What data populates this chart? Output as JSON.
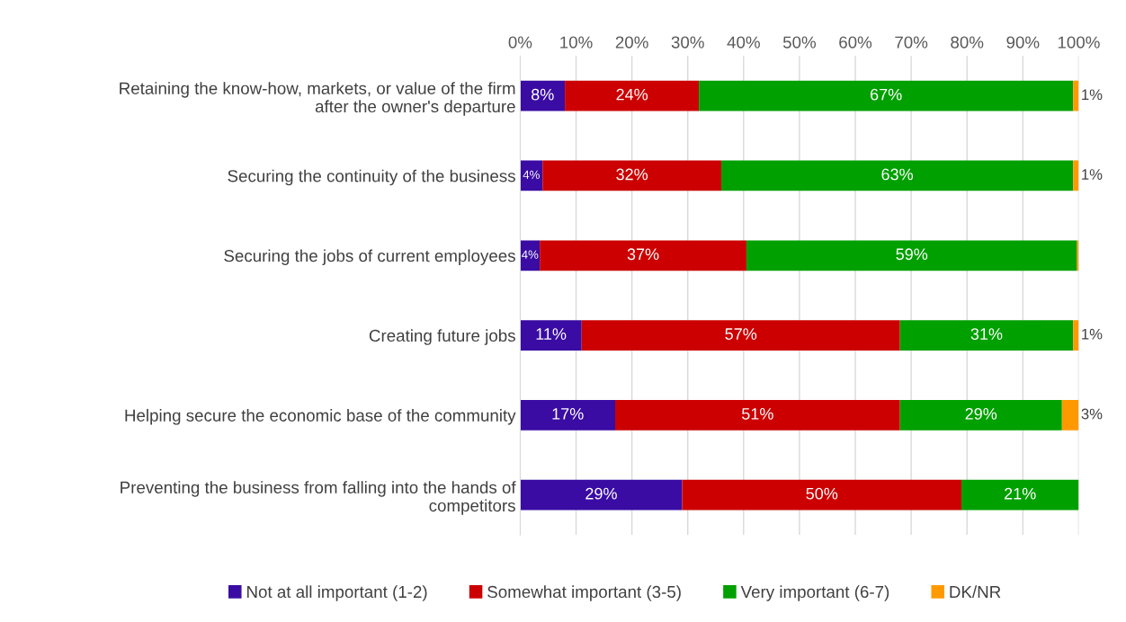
{
  "chart_data": {
    "type": "bar",
    "orientation": "horizontal",
    "stacked": true,
    "categories": [
      "Retaining the know-how, markets, or value of the firm after the owner's departure",
      "Securing the continuity of the business",
      "Securing the jobs of current employees",
      "Creating future jobs",
      "Helping secure the economic base of the community",
      "Preventing the business from falling into the hands of competitors"
    ],
    "series": [
      {
        "name": "Not at all important (1-2)",
        "color": "#3a0ca3",
        "values": [
          8,
          4,
          3.5,
          11,
          17,
          29
        ],
        "value_labels": [
          "8%",
          "4%",
          "4%",
          "11%",
          "17%",
          "29%"
        ]
      },
      {
        "name": "Somewhat important (3-5)",
        "color": "#cc0000",
        "values": [
          24,
          32,
          37,
          57,
          51,
          50
        ],
        "value_labels": [
          "24%",
          "32%",
          "37%",
          "57%",
          "51%",
          "50%"
        ]
      },
      {
        "name": "Very important (6-7)",
        "color": "#00a000",
        "values": [
          67,
          63,
          59.2,
          31,
          29,
          21
        ],
        "value_labels": [
          "67%",
          "63%",
          "59%",
          "31%",
          "29%",
          "21%"
        ]
      },
      {
        "name": "DK/NR",
        "color": "#ff9900",
        "values": [
          1,
          1,
          0.3,
          1,
          3,
          null
        ],
        "value_labels": [
          "1%",
          "1%",
          null,
          "1%",
          "3%",
          null
        ]
      }
    ],
    "xlim": [
      0,
      100
    ],
    "xticks": [
      {
        "value": 0,
        "label": "0%"
      },
      {
        "value": 10,
        "label": "10%"
      },
      {
        "value": 20,
        "label": "20%"
      },
      {
        "value": 30,
        "label": "30%"
      },
      {
        "value": 40,
        "label": "40%"
      },
      {
        "value": 50,
        "label": "50%"
      },
      {
        "value": 60,
        "label": "60%"
      },
      {
        "value": 70,
        "label": "70%"
      },
      {
        "value": 80,
        "label": "80%"
      },
      {
        "value": 90,
        "label": "90%"
      },
      {
        "value": 100,
        "label": "100%"
      }
    ],
    "grid": "x",
    "legend": "bottom"
  }
}
